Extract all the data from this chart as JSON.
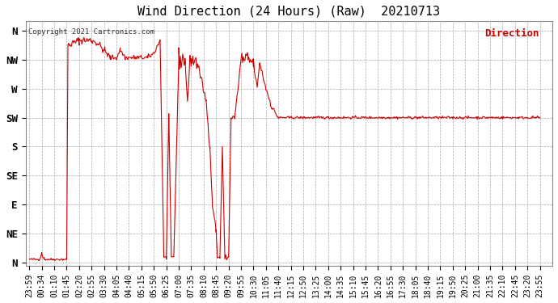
{
  "title": "Wind Direction (24 Hours) (Raw)  20210713",
  "copyright_text": "Copyright 2021 Cartronics.com",
  "legend_label": "Direction",
  "background_color": "#ffffff",
  "plot_bg_color": "#ffffff",
  "grid_color": "#aaaaaa",
  "line_color": "#cc0000",
  "ytick_labels": [
    "N",
    "NE",
    "E",
    "SE",
    "S",
    "SW",
    "W",
    "NW",
    "N"
  ],
  "ytick_values": [
    0,
    45,
    90,
    135,
    180,
    225,
    270,
    315,
    360
  ],
  "ymin": -5,
  "ymax": 375,
  "xlabel_fontsize": 7,
  "ylabel_fontsize": 9,
  "title_fontsize": 11,
  "xtick_labels": [
    "23:59",
    "00:34",
    "01:10",
    "01:45",
    "02:20",
    "02:55",
    "03:30",
    "04:05",
    "04:40",
    "05:15",
    "05:50",
    "06:25",
    "07:00",
    "07:35",
    "08:10",
    "08:45",
    "09:20",
    "09:55",
    "10:30",
    "11:05",
    "11:40",
    "12:15",
    "12:50",
    "13:25",
    "14:00",
    "14:35",
    "15:10",
    "15:45",
    "16:20",
    "16:55",
    "17:30",
    "18:05",
    "18:40",
    "19:15",
    "19:50",
    "20:25",
    "21:00",
    "21:35",
    "22:10",
    "22:45",
    "23:20",
    "23:55"
  ],
  "figsize": [
    6.9,
    3.75
  ],
  "dpi": 100
}
